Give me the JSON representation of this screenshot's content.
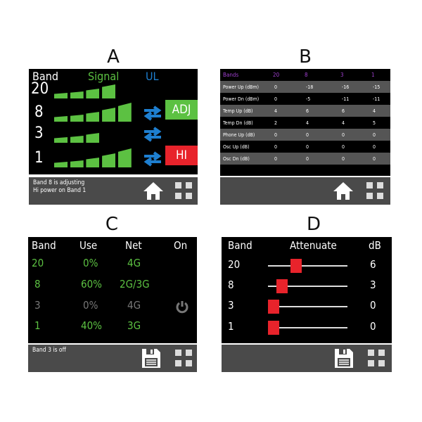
{
  "panels": {
    "a": {
      "letter": "A",
      "header": {
        "band": "Band",
        "signal": "Signal",
        "ul": "UL"
      },
      "rows": [
        {
          "band": "20",
          "bars": 4,
          "ul": false,
          "tag": ""
        },
        {
          "band": "8",
          "bars": 5,
          "ul": true,
          "tag": "ADJ"
        },
        {
          "band": "3",
          "bars": 3,
          "ul": true,
          "tag": ""
        },
        {
          "band": "1",
          "bars": 5,
          "ul": true,
          "tag": "HI"
        }
      ],
      "footer": "Band 8 is adjusting\nHi power on Band 1",
      "icons": [
        "home-icon",
        "grid-menu-icon"
      ]
    },
    "b": {
      "letter": "B",
      "header": [
        "Bands",
        "20",
        "8",
        "3",
        "1"
      ],
      "rows": [
        [
          "Power Up (dBm)",
          "0",
          "-18",
          "-16",
          "-15"
        ],
        [
          "Power Dn (dBm)",
          "0",
          "-5",
          "-11",
          "-11"
        ],
        [
          "Temp Up (dB)",
          "4",
          "6",
          "6",
          "4"
        ],
        [
          "Temp Dn (dB)",
          "2",
          "4",
          "4",
          "5"
        ],
        [
          "Phone Up (dB)",
          "0",
          "0",
          "0",
          "0"
        ],
        [
          "Osc Up (dB)",
          "0",
          "0",
          "0",
          "0"
        ],
        [
          "Osc Dn (dB)",
          "0",
          "0",
          "0",
          "0"
        ]
      ],
      "icons": [
        "home-icon",
        "grid-menu-icon"
      ]
    },
    "c": {
      "letter": "C",
      "header": {
        "band": "Band",
        "use": "Use",
        "net": "Net",
        "on": "On"
      },
      "rows": [
        {
          "band": "20",
          "use": "0%",
          "net": "4G",
          "on": true
        },
        {
          "band": "8",
          "use": "60%",
          "net": "2G/3G",
          "on": true
        },
        {
          "band": "3",
          "use": "0%",
          "net": "4G",
          "on": false
        },
        {
          "band": "1",
          "use": "40%",
          "net": "3G",
          "on": true
        }
      ],
      "footer": "Band 3 is off",
      "icons": [
        "save-icon",
        "grid-menu-icon"
      ]
    },
    "d": {
      "letter": "D",
      "header": {
        "band": "Band",
        "attenuate": "Attenuate",
        "db": "dB"
      },
      "rows": [
        {
          "band": "20",
          "db": "6"
        },
        {
          "band": "8",
          "db": "3"
        },
        {
          "band": "3",
          "db": "0"
        },
        {
          "band": "1",
          "db": "0"
        }
      ],
      "icons": [
        "save-icon",
        "grid-menu-icon"
      ]
    }
  },
  "colors": {
    "green": "#5cc142",
    "blue": "#1e7fd0",
    "red": "#e8232b",
    "purple": "#a040d0",
    "gray": "#777777",
    "footer": "#4a4a4a"
  }
}
